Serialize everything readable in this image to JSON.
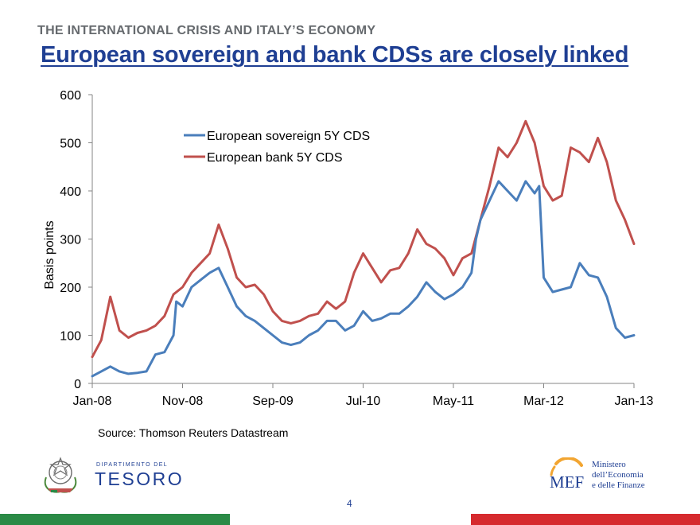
{
  "header": {
    "kicker": "THE INTERNATIONAL CRISIS AND ITALY’S ECONOMY",
    "title": "European sovereign and bank CDSs are closely linked"
  },
  "chart_data": {
    "type": "line",
    "title": "",
    "xlabel": "",
    "ylabel": "Basis points",
    "ylim": [
      0,
      600
    ],
    "yticks": [
      0,
      100,
      200,
      300,
      400,
      500,
      600
    ],
    "xlim": [
      0,
      60
    ],
    "xticks": [
      {
        "label": "Jan-08",
        "x": 0
      },
      {
        "label": "Nov-08",
        "x": 10
      },
      {
        "label": "Sep-09",
        "x": 20
      },
      {
        "label": "Jul-10",
        "x": 30
      },
      {
        "label": "May-11",
        "x": 40
      },
      {
        "label": "Mar-12",
        "x": 50
      },
      {
        "label": "Jan-13",
        "x": 60
      }
    ],
    "x_unit": "months since Jan-08",
    "grid": false,
    "legend_position": "upper-center",
    "series": [
      {
        "name": "European sovereign 5Y CDS",
        "color": "#4a7ebb",
        "points": [
          [
            0,
            15
          ],
          [
            1,
            25
          ],
          [
            2,
            35
          ],
          [
            3,
            25
          ],
          [
            4,
            20
          ],
          [
            5,
            22
          ],
          [
            6,
            25
          ],
          [
            7,
            60
          ],
          [
            8,
            65
          ],
          [
            9,
            100
          ],
          [
            9.3,
            170
          ],
          [
            10,
            160
          ],
          [
            11,
            200
          ],
          [
            12,
            215
          ],
          [
            13,
            230
          ],
          [
            14,
            240
          ],
          [
            15,
            200
          ],
          [
            16,
            160
          ],
          [
            17,
            140
          ],
          [
            18,
            130
          ],
          [
            19,
            115
          ],
          [
            20,
            100
          ],
          [
            21,
            85
          ],
          [
            22,
            80
          ],
          [
            23,
            85
          ],
          [
            24,
            100
          ],
          [
            25,
            110
          ],
          [
            26,
            130
          ],
          [
            27,
            130
          ],
          [
            28,
            110
          ],
          [
            29,
            120
          ],
          [
            30,
            150
          ],
          [
            31,
            130
          ],
          [
            32,
            135
          ],
          [
            33,
            145
          ],
          [
            34,
            145
          ],
          [
            35,
            160
          ],
          [
            36,
            180
          ],
          [
            37,
            210
          ],
          [
            38,
            190
          ],
          [
            39,
            175
          ],
          [
            40,
            185
          ],
          [
            41,
            200
          ],
          [
            42,
            230
          ],
          [
            42.5,
            300
          ],
          [
            43,
            340
          ],
          [
            44,
            380
          ],
          [
            45,
            420
          ],
          [
            46,
            400
          ],
          [
            47,
            380
          ],
          [
            48,
            420
          ],
          [
            49,
            395
          ],
          [
            49.5,
            410
          ],
          [
            50,
            220
          ],
          [
            51,
            190
          ],
          [
            52,
            195
          ],
          [
            53,
            200
          ],
          [
            54,
            250
          ],
          [
            55,
            225
          ],
          [
            56,
            220
          ],
          [
            57,
            180
          ],
          [
            58,
            115
          ],
          [
            59,
            95
          ],
          [
            60,
            100
          ]
        ]
      },
      {
        "name": "European bank 5Y CDS",
        "color": "#c0504d",
        "points": [
          [
            0,
            55
          ],
          [
            1,
            90
          ],
          [
            2,
            180
          ],
          [
            3,
            110
          ],
          [
            4,
            95
          ],
          [
            5,
            105
          ],
          [
            6,
            110
          ],
          [
            7,
            120
          ],
          [
            8,
            140
          ],
          [
            9,
            185
          ],
          [
            10,
            200
          ],
          [
            11,
            230
          ],
          [
            12,
            250
          ],
          [
            13,
            270
          ],
          [
            14,
            330
          ],
          [
            15,
            280
          ],
          [
            16,
            220
          ],
          [
            17,
            200
          ],
          [
            18,
            205
          ],
          [
            19,
            185
          ],
          [
            20,
            150
          ],
          [
            21,
            130
          ],
          [
            22,
            125
          ],
          [
            23,
            130
          ],
          [
            24,
            140
          ],
          [
            25,
            145
          ],
          [
            26,
            170
          ],
          [
            27,
            155
          ],
          [
            28,
            170
          ],
          [
            29,
            230
          ],
          [
            30,
            270
          ],
          [
            31,
            240
          ],
          [
            32,
            210
          ],
          [
            33,
            235
          ],
          [
            34,
            240
          ],
          [
            35,
            270
          ],
          [
            36,
            320
          ],
          [
            37,
            290
          ],
          [
            38,
            280
          ],
          [
            39,
            260
          ],
          [
            40,
            225
          ],
          [
            41,
            260
          ],
          [
            42,
            270
          ],
          [
            43,
            340
          ],
          [
            44,
            410
          ],
          [
            45,
            490
          ],
          [
            46,
            470
          ],
          [
            47,
            500
          ],
          [
            48,
            545
          ],
          [
            49,
            500
          ],
          [
            50,
            410
          ],
          [
            51,
            380
          ],
          [
            52,
            390
          ],
          [
            53,
            490
          ],
          [
            54,
            480
          ],
          [
            55,
            460
          ],
          [
            56,
            510
          ],
          [
            57,
            460
          ],
          [
            58,
            380
          ],
          [
            59,
            340
          ],
          [
            60,
            290
          ]
        ]
      }
    ]
  },
  "footer": {
    "source": "Source: Thomson Reuters Datastream",
    "tesoro_dept": "Dipartimento del",
    "tesoro_name": "TESORO",
    "mef_mark": "MEF",
    "mef_line1": "Ministero",
    "mef_line2": "dell’Economia",
    "mef_line3": "e delle Finanze",
    "page_number": "4"
  },
  "colors": {
    "title_blue": "#1f3f93",
    "kicker_gray": "#666a6e",
    "band_green": "#2a8a46",
    "band_red": "#d62a2e",
    "mef_orange": "#f2a531"
  }
}
